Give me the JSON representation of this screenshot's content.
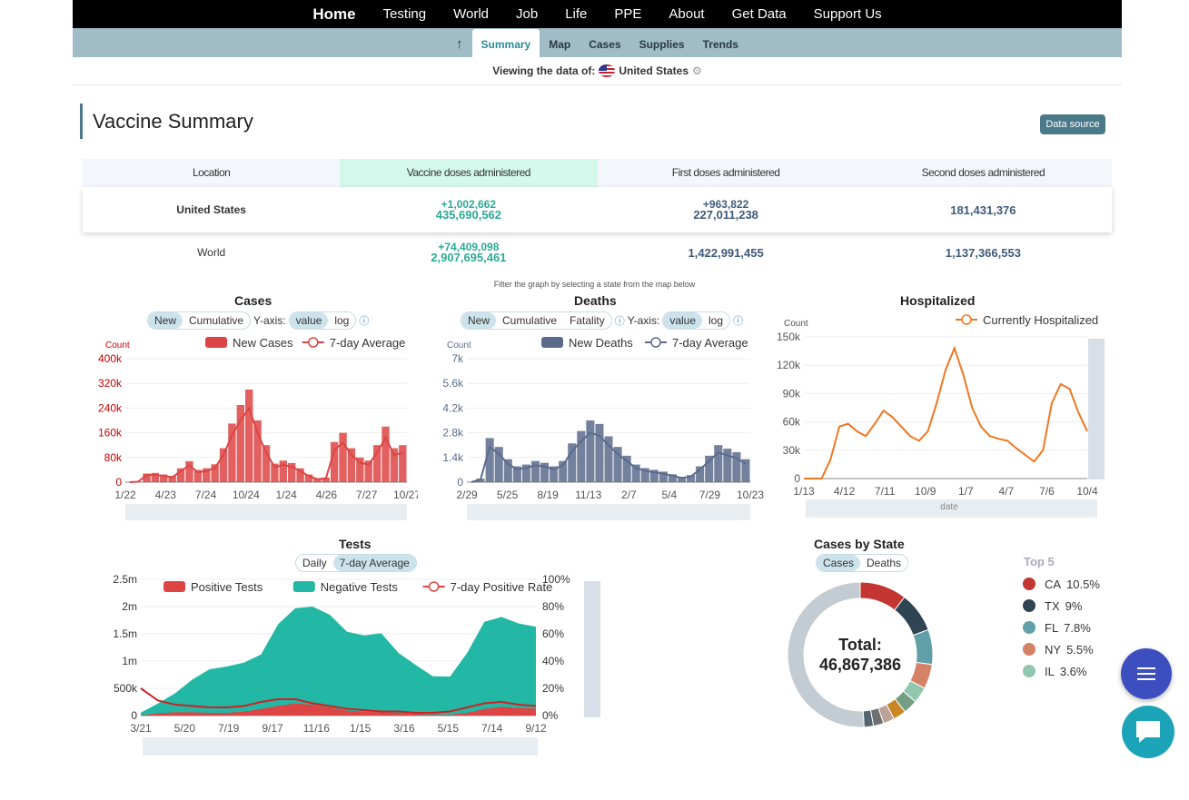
{
  "nav": {
    "home": "Home",
    "items": [
      "Testing",
      "World",
      "Job",
      "Life",
      "PPE",
      "About",
      "Get Data",
      "Support Us"
    ]
  },
  "subnav": {
    "items": [
      "Summary",
      "Map",
      "Cases",
      "Supplies",
      "Trends"
    ],
    "active": "Summary"
  },
  "viewing": {
    "label": "Viewing the data of:",
    "country": "United States"
  },
  "vaccine": {
    "title": "Vaccine Summary",
    "data_source": "Data source",
    "headers": [
      "Location",
      "Vaccine doses administered",
      "First doses administered",
      "Second doses administered"
    ],
    "rows": [
      {
        "location": "United States",
        "doses_delta": "+1,002,662",
        "doses": "435,690,562",
        "first_delta": "+963,822",
        "first": "227,011,238",
        "second": "181,431,376"
      },
      {
        "location": "World",
        "doses_delta": "+74,409,098",
        "doses": "2,907,695,461",
        "first_delta": "",
        "first": "1,422,991,455",
        "second": "1,137,366,553"
      }
    ]
  },
  "filter_hint": "Filter the graph by selecting a state from the map below",
  "cases": {
    "title": "Cases",
    "tabs": [
      "New",
      "Cumulative"
    ],
    "yaxis_label": "Y-axis:",
    "yaxis": [
      "value",
      "log"
    ],
    "legend": [
      "New Cases",
      "7-day Average"
    ]
  },
  "deaths": {
    "title": "Deaths",
    "tabs": [
      "New",
      "Cumulative",
      "Fatality"
    ],
    "yaxis_label": "Y-axis:",
    "yaxis": [
      "value",
      "log"
    ],
    "legend": [
      "New Deaths",
      "7-day Average"
    ]
  },
  "hosp": {
    "title": "Hospitalized",
    "legend": [
      "Currently Hospitalized"
    ]
  },
  "tests": {
    "title": "Tests",
    "tabs": [
      "Daily",
      "7-day Average"
    ],
    "legend": [
      "Positive Tests",
      "Negative Tests",
      "7-day Positive Rate"
    ]
  },
  "bystate": {
    "title": "Cases by State",
    "tabs": [
      "Cases",
      "Deaths"
    ],
    "total_label": "Total:",
    "total": "46,867,386",
    "top_label": "Top 5",
    "top5": [
      {
        "state": "CA",
        "pct": "10.5%",
        "color": "#c23531"
      },
      {
        "state": "TX",
        "pct": "9%",
        "color": "#2f4554"
      },
      {
        "state": "FL",
        "pct": "7.8%",
        "color": "#61a0a8"
      },
      {
        "state": "NY",
        "pct": "5.5%",
        "color": "#d48265"
      },
      {
        "state": "IL",
        "pct": "3.6%",
        "color": "#91c7ae"
      }
    ]
  },
  "chart_data": [
    {
      "type": "bar",
      "title": "Cases",
      "ylabel": "Count",
      "x_ticks": [
        "1/22",
        "4/23",
        "7/24",
        "10/24",
        "1/24",
        "4/26",
        "7/27",
        "10/27"
      ],
      "y_ticks": [
        "0",
        "80k",
        "160k",
        "240k",
        "320k",
        "400k"
      ],
      "ylim": [
        0,
        400000
      ],
      "series": [
        {
          "name": "New Cases",
          "color": "#dd4444",
          "values": [
            0,
            2000,
            28000,
            30000,
            25000,
            20000,
            45000,
            68000,
            40000,
            45000,
            58000,
            110000,
            190000,
            250000,
            300000,
            200000,
            120000,
            60000,
            70000,
            62000,
            45000,
            25000,
            12000,
            15000,
            130000,
            160000,
            110000,
            80000,
            70000,
            120000,
            180000,
            110000,
            120000
          ]
        },
        {
          "name": "7-day Average",
          "color": "#dd4444"
        }
      ]
    },
    {
      "type": "bar",
      "title": "Deaths",
      "ylabel": "Count",
      "x_ticks": [
        "2/29",
        "5/25",
        "8/19",
        "11/13",
        "2/7",
        "5/4",
        "7/29",
        "10/23"
      ],
      "y_ticks": [
        "0",
        "1.4k",
        "2.8k",
        "4.2k",
        "5.6k",
        "7k"
      ],
      "ylim": [
        0,
        7000
      ],
      "series": [
        {
          "name": "New Deaths",
          "color": "#5b6b8c",
          "values": [
            0,
            200,
            2500,
            2000,
            1300,
            900,
            1000,
            1200,
            1100,
            900,
            1200,
            2200,
            2900,
            3500,
            3300,
            2600,
            2000,
            1500,
            1000,
            800,
            700,
            600,
            450,
            300,
            400,
            900,
            1500,
            2100,
            1900,
            1700,
            1300
          ]
        },
        {
          "name": "7-day Average",
          "color": "#5b6b8c"
        }
      ]
    },
    {
      "type": "line",
      "title": "Hospitalized",
      "ylabel": "Count",
      "xlabel": "date",
      "x_ticks": [
        "1/13",
        "4/12",
        "7/11",
        "10/9",
        "1/7",
        "4/7",
        "7/6",
        "10/4"
      ],
      "y_ticks": [
        "0",
        "30k",
        "60k",
        "90k",
        "120k",
        "150k"
      ],
      "ylim": [
        0,
        150000
      ],
      "series": [
        {
          "name": "Currently Hospitalized",
          "color": "#ee7722",
          "values": [
            0,
            0,
            0,
            20000,
            55000,
            58000,
            50000,
            45000,
            58000,
            72000,
            65000,
            55000,
            45000,
            40000,
            50000,
            80000,
            115000,
            138000,
            110000,
            75000,
            55000,
            45000,
            42000,
            40000,
            32000,
            25000,
            18000,
            30000,
            80000,
            100000,
            95000,
            70000,
            50000
          ]
        }
      ]
    },
    {
      "type": "area",
      "title": "Tests",
      "x_ticks": [
        "3/21",
        "5/20",
        "7/19",
        "9/17",
        "11/16",
        "1/15",
        "3/16",
        "5/15",
        "7/14",
        "9/12"
      ],
      "y_ticks": [
        "0",
        "500k",
        "1m",
        "1.5m",
        "2m",
        "2.5m"
      ],
      "y2_ticks": [
        "0%",
        "20%",
        "40%",
        "60%",
        "80%",
        "100%"
      ],
      "ylim": [
        0,
        2500000
      ],
      "series": [
        {
          "name": "Positive Tests",
          "color": "#dd4444",
          "values": [
            5000,
            40000,
            60000,
            60000,
            50000,
            50000,
            70000,
            120000,
            180000,
            220000,
            200000,
            150000,
            90000,
            70000,
            60000,
            50000,
            30000,
            20000,
            15000,
            50000,
            120000,
            160000,
            140000,
            130000
          ]
        },
        {
          "name": "Negative Tests",
          "color": "#22b8a5",
          "values": [
            50000,
            180000,
            350000,
            600000,
            800000,
            850000,
            900000,
            1000000,
            1500000,
            1750000,
            1800000,
            1700000,
            1450000,
            1400000,
            1450000,
            1100000,
            900000,
            700000,
            700000,
            1100000,
            1600000,
            1650000,
            1550000,
            1500000
          ]
        },
        {
          "name": "7-day Positive Rate",
          "color": "#dd4444",
          "values": [
            20,
            11,
            8,
            7,
            6,
            6,
            7,
            10,
            12,
            12,
            9,
            7,
            5,
            4,
            3,
            3,
            2,
            2,
            3,
            6,
            9,
            10,
            8,
            7
          ]
        }
      ]
    },
    {
      "type": "pie",
      "title": "Cases by State",
      "values": [
        10.5,
        9,
        7.8,
        5.5,
        3.6,
        3.2,
        2.9,
        2.5,
        2.3,
        2.1,
        51.1
      ],
      "colors": [
        "#c23531",
        "#2f4554",
        "#61a0a8",
        "#d48265",
        "#91c7ae",
        "#749f83",
        "#ca8622",
        "#bda29a",
        "#6e7074",
        "#546570",
        "#c4ccd3"
      ]
    }
  ]
}
